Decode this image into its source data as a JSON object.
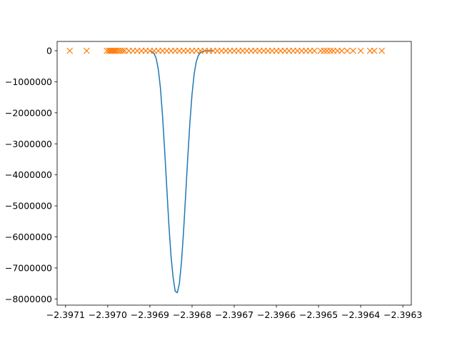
{
  "chart_data": {
    "type": "line",
    "title": "",
    "xlabel": "",
    "ylabel": "",
    "xlim": [
      -2.39712,
      -2.39628
    ],
    "ylim": [
      -8200000,
      300000
    ],
    "x_ticks": [
      -2.3971,
      -2.397,
      -2.3969,
      -2.3968,
      -2.3967,
      -2.3966,
      -2.3965,
      -2.3964,
      -2.3963
    ],
    "x_tick_labels": [
      "−2.3971",
      "−2.3970",
      "−2.3969",
      "−2.3968",
      "−2.3967",
      "−2.3966",
      "−2.3965",
      "−2.3964",
      "−2.3963"
    ],
    "y_ticks": [
      0,
      -1000000,
      -2000000,
      -3000000,
      -4000000,
      -5000000,
      -6000000,
      -7000000,
      -8000000
    ],
    "y_tick_labels": [
      "0",
      "−1000000",
      "−2000000",
      "−3000000",
      "−4000000",
      "−5000000",
      "−6000000",
      "−7000000",
      "−8000000"
    ],
    "grid": false,
    "series": [
      {
        "kind": "line",
        "color": "#1f77b4",
        "x": [
          -2.3969,
          -2.396895,
          -2.39689,
          -2.396885,
          -2.39688,
          -2.396875,
          -2.39687,
          -2.396865,
          -2.39686,
          -2.396855,
          -2.39685,
          -2.396845,
          -2.39684,
          -2.396835,
          -2.39683,
          -2.396825,
          -2.39682,
          -2.396815,
          -2.39681,
          -2.396805,
          -2.3968,
          -2.396795,
          -2.39679,
          -2.396785,
          -2.39678,
          -2.396775,
          -2.39677,
          -2.396765,
          -2.39676,
          -2.396755,
          -2.39675
        ],
        "y": [
          0,
          -30000,
          -90000,
          -250000,
          -600000,
          -1200000,
          -2100000,
          -3200000,
          -4400000,
          -5600000,
          -6600000,
          -7300000,
          -7750000,
          -7800000,
          -7500000,
          -6800000,
          -5800000,
          -4600000,
          -3400000,
          -2300000,
          -1400000,
          -750000,
          -350000,
          -150000,
          -60000,
          -20000,
          -5000,
          -1000,
          0,
          0,
          0
        ]
      },
      {
        "kind": "markers",
        "marker": "x",
        "color": "#ff7f0e",
        "x": [
          -2.39709,
          -2.39705,
          -2.397002,
          -2.396997,
          -2.396994,
          -2.396991,
          -2.396988,
          -2.396985,
          -2.396982,
          -2.39698,
          -2.396975,
          -2.39697,
          -2.396965,
          -2.39696,
          -2.39695,
          -2.39694,
          -2.39693,
          -2.39692,
          -2.39691,
          -2.3969,
          -2.39689,
          -2.39688,
          -2.39687,
          -2.39686,
          -2.39685,
          -2.39684,
          -2.39683,
          -2.39682,
          -2.39681,
          -2.3968,
          -2.39679,
          -2.39678,
          -2.39677,
          -2.39676,
          -2.39675,
          -2.39674,
          -2.39673,
          -2.39672,
          -2.39671,
          -2.3967,
          -2.39669,
          -2.39668,
          -2.39667,
          -2.39666,
          -2.39665,
          -2.39664,
          -2.39663,
          -2.39662,
          -2.39661,
          -2.3966,
          -2.39659,
          -2.39658,
          -2.39657,
          -2.39656,
          -2.39655,
          -2.39654,
          -2.39653,
          -2.39652,
          -2.39651,
          -2.396495,
          -2.396487,
          -2.39648,
          -2.396472,
          -2.396465,
          -2.396455,
          -2.396445,
          -2.396432,
          -2.396418,
          -2.3964,
          -2.396378,
          -2.396368,
          -2.39635
        ],
        "y": [
          0,
          0,
          0,
          0,
          0,
          0,
          0,
          0,
          0,
          0,
          0,
          0,
          0,
          0,
          0,
          0,
          0,
          0,
          0,
          0,
          0,
          0,
          0,
          0,
          0,
          0,
          0,
          0,
          0,
          0,
          0,
          0,
          0,
          0,
          0,
          0,
          0,
          0,
          0,
          0,
          0,
          0,
          0,
          0,
          0,
          0,
          0,
          0,
          0,
          0,
          0,
          0,
          0,
          0,
          0,
          0,
          0,
          0,
          0,
          0,
          0,
          0,
          0,
          0,
          0,
          0,
          0,
          0,
          0,
          0,
          0,
          0
        ]
      }
    ]
  }
}
